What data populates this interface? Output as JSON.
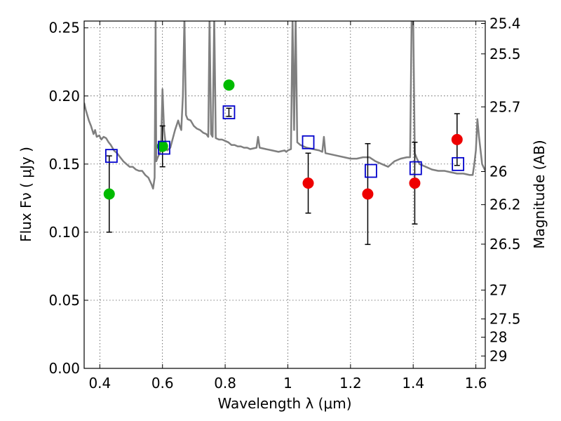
{
  "chart_data": {
    "type": "scatter",
    "title": "",
    "xlabel": "Wavelength  λ (μm)",
    "ylabel": "Flux  Fν  ( μJy )",
    "y2label": "Magnitude (AB)",
    "xlim": [
      0.35,
      1.63
    ],
    "ylim": [
      0.0,
      0.255
    ],
    "grid": true,
    "x_ticks": [
      0.4,
      0.6,
      0.8,
      1.0,
      1.2,
      1.4,
      1.6
    ],
    "x_tick_labels": [
      "0.4",
      "0.6",
      "0.8",
      "1",
      "1.2",
      "1.4",
      "1.6"
    ],
    "y_ticks": [
      0.0,
      0.05,
      0.1,
      0.15,
      0.2,
      0.25
    ],
    "y_tick_labels": [
      "0.00",
      "0.05",
      "0.10",
      "0.15",
      "0.20",
      "0.25"
    ],
    "y2_ticks": [
      {
        "label": "25.4",
        "flux": 0.2532
      },
      {
        "label": "25.5",
        "flux": 0.2309
      },
      {
        "label": "25.7",
        "flux": 0.192
      },
      {
        "label": "26",
        "flux": 0.1445
      },
      {
        "label": "26.2",
        "flux": 0.1202
      },
      {
        "label": "26.5",
        "flux": 0.0912
      },
      {
        "label": "27",
        "flux": 0.0575
      },
      {
        "label": "27.5",
        "flux": 0.0363
      },
      {
        "label": "28",
        "flux": 0.0229
      },
      {
        "label": "29",
        "flux": 0.0091
      }
    ],
    "series": [
      {
        "kind": "line",
        "color": "#7f7f7f",
        "x": [
          0.35,
          0.355,
          0.365,
          0.372,
          0.38,
          0.385,
          0.39,
          0.398,
          0.405,
          0.412,
          0.42,
          0.428,
          0.435,
          0.445,
          0.455,
          0.465,
          0.475,
          0.485,
          0.495,
          0.505,
          0.515,
          0.525,
          0.535,
          0.545,
          0.555,
          0.565,
          0.57,
          0.575,
          0.578,
          0.58,
          0.585,
          0.595,
          0.6,
          0.605,
          0.61,
          0.615,
          0.625,
          0.64,
          0.65,
          0.655,
          0.66,
          0.665,
          0.67,
          0.675,
          0.68,
          0.69,
          0.7,
          0.71,
          0.72,
          0.73,
          0.74,
          0.746,
          0.75,
          0.755,
          0.76,
          0.765,
          0.77,
          0.78,
          0.79,
          0.8,
          0.81,
          0.82,
          0.83,
          0.84,
          0.85,
          0.86,
          0.87,
          0.88,
          0.9,
          0.905,
          0.91,
          0.93,
          0.95,
          0.97,
          0.99,
          0.995,
          1.0,
          1.01,
          1.015,
          1.02,
          1.025,
          1.03,
          1.04,
          1.06,
          1.08,
          1.1,
          1.11,
          1.115,
          1.12,
          1.14,
          1.16,
          1.18,
          1.2,
          1.22,
          1.24,
          1.26,
          1.28,
          1.3,
          1.32,
          1.34,
          1.36,
          1.38,
          1.39,
          1.395,
          1.4,
          1.405,
          1.41,
          1.42,
          1.44,
          1.46,
          1.48,
          1.5,
          1.52,
          1.54,
          1.56,
          1.58,
          1.59,
          1.595,
          1.6,
          1.605,
          1.61,
          1.62,
          1.63
        ],
        "y": [
          0.195,
          0.19,
          0.182,
          0.178,
          0.172,
          0.175,
          0.17,
          0.171,
          0.168,
          0.17,
          0.169,
          0.166,
          0.164,
          0.16,
          0.158,
          0.155,
          0.152,
          0.15,
          0.148,
          0.148,
          0.146,
          0.145,
          0.145,
          0.142,
          0.14,
          0.135,
          0.132,
          0.14,
          0.255,
          0.152,
          0.155,
          0.16,
          0.205,
          0.175,
          0.165,
          0.16,
          0.162,
          0.175,
          0.182,
          0.178,
          0.175,
          0.2,
          0.258,
          0.186,
          0.183,
          0.182,
          0.178,
          0.176,
          0.175,
          0.173,
          0.172,
          0.17,
          0.258,
          0.172,
          0.17,
          0.258,
          0.169,
          0.168,
          0.168,
          0.167,
          0.166,
          0.164,
          0.164,
          0.163,
          0.163,
          0.162,
          0.162,
          0.161,
          0.162,
          0.17,
          0.162,
          0.161,
          0.16,
          0.159,
          0.16,
          0.159,
          0.16,
          0.161,
          0.258,
          0.175,
          0.258,
          0.166,
          0.164,
          0.162,
          0.161,
          0.16,
          0.159,
          0.17,
          0.158,
          0.157,
          0.156,
          0.155,
          0.154,
          0.154,
          0.155,
          0.155,
          0.152,
          0.15,
          0.148,
          0.152,
          0.154,
          0.155,
          0.155,
          0.258,
          0.258,
          0.158,
          0.155,
          0.15,
          0.148,
          0.146,
          0.145,
          0.145,
          0.144,
          0.143,
          0.143,
          0.142,
          0.142,
          0.15,
          0.16,
          0.183,
          0.17,
          0.15,
          0.145
        ]
      },
      {
        "kind": "markers",
        "marker": "circle",
        "color": "#00bb00",
        "points": [
          {
            "x": 0.43,
            "y": 0.128,
            "yerr": [
              0.028,
              0.028
            ]
          },
          {
            "x": 0.6,
            "y": 0.163,
            "yerr": [
              0.015,
              0.015
            ]
          },
          {
            "x": 0.812,
            "y": 0.208
          }
        ]
      },
      {
        "kind": "markers",
        "marker": "circle",
        "color": "#ee0000",
        "points": [
          {
            "x": 1.065,
            "y": 0.136,
            "yerr": [
              0.022,
              0.022
            ]
          },
          {
            "x": 1.255,
            "y": 0.128,
            "yerr": [
              0.037,
              0.037
            ]
          },
          {
            "x": 1.405,
            "y": 0.136,
            "yerr": [
              0.03,
              0.03
            ]
          },
          {
            "x": 1.54,
            "y": 0.168,
            "yerr": [
              0.019,
              0.019
            ]
          }
        ]
      },
      {
        "kind": "markers",
        "marker": "open-square",
        "color": "#0000cc",
        "points": [
          {
            "x": 0.437,
            "y": 0.156
          },
          {
            "x": 0.605,
            "y": 0.162
          },
          {
            "x": 0.812,
            "y": 0.188,
            "yerr": [
              0.003,
              0.003
            ]
          },
          {
            "x": 1.065,
            "y": 0.166
          },
          {
            "x": 1.265,
            "y": 0.145
          },
          {
            "x": 1.408,
            "y": 0.147
          },
          {
            "x": 1.543,
            "y": 0.15
          }
        ]
      }
    ]
  }
}
